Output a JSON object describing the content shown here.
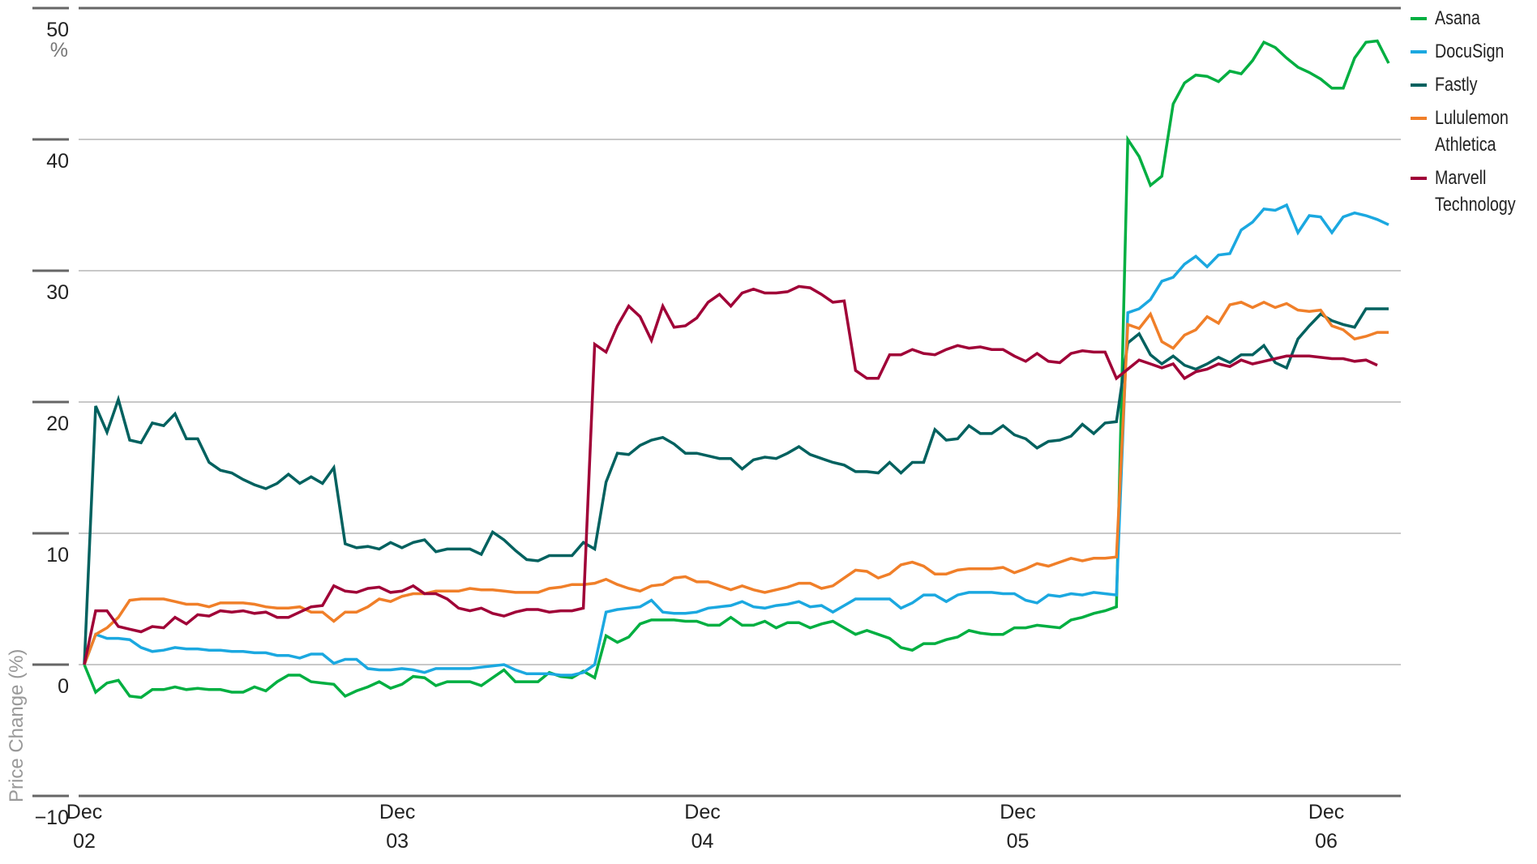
{
  "chart_data": {
    "type": "line",
    "title": "",
    "xlabel": "",
    "ylabel": "Price Change (%)",
    "y_unit": "%",
    "ylim": [
      -10,
      50
    ],
    "yticks": [
      50,
      40,
      30,
      20,
      10,
      0,
      -10
    ],
    "ytick_labels": [
      "50",
      "40",
      "30",
      "20",
      "10",
      "0",
      "−10"
    ],
    "xticks": [
      {
        "line1": "Dec",
        "line2": "02",
        "index": 0
      },
      {
        "line1": "Dec",
        "line2": "03",
        "index": 27.6
      },
      {
        "line1": "Dec",
        "line2": "04",
        "index": 54.5
      },
      {
        "line1": "Dec",
        "line2": "05",
        "index": 82.3
      },
      {
        "line1": "Dec",
        "line2": "06",
        "index": 109.5
      }
    ],
    "grid": true,
    "legend_position": "right",
    "series": [
      {
        "name": "Asana",
        "color": "#00AF41",
        "values": [
          0,
          -2.1,
          -1.4,
          -1.2,
          -2.4,
          -2.5,
          -1.9,
          -1.9,
          -1.7,
          -1.9,
          -1.8,
          -1.9,
          -1.9,
          -2.1,
          -2.1,
          -1.7,
          -2.0,
          -1.3,
          -0.8,
          -0.8,
          -1.3,
          -1.4,
          -1.5,
          -2.4,
          -2.0,
          -1.7,
          -1.3,
          -1.8,
          -1.5,
          -0.9,
          -1.0,
          -1.6,
          -1.3,
          -1.3,
          -1.3,
          -1.6,
          -1.0,
          -0.4,
          -1.3,
          -1.3,
          -1.3,
          -0.6,
          -0.9,
          -1.0,
          -0.5,
          -1.0,
          2.2,
          1.7,
          2.1,
          3.1,
          3.4,
          3.4,
          3.4,
          3.3,
          3.3,
          3.0,
          3.0,
          3.6,
          3.0,
          3.0,
          3.3,
          2.8,
          3.2,
          3.2,
          2.8,
          3.1,
          3.3,
          2.8,
          2.3,
          2.6,
          2.3,
          2.0,
          1.3,
          1.1,
          1.6,
          1.6,
          1.9,
          2.1,
          2.6,
          2.4,
          2.3,
          2.3,
          2.8,
          2.8,
          3.0,
          2.9,
          2.8,
          3.4,
          3.6,
          3.9,
          4.1,
          4.4,
          40.0,
          38.7,
          36.5,
          37.2,
          42.7,
          44.3,
          44.9,
          44.8,
          44.4,
          45.2,
          45.0,
          46.0,
          47.4,
          47.0,
          46.2,
          45.5,
          45.1,
          44.6,
          43.9,
          43.9,
          46.2,
          47.4,
          47.5,
          45.8
        ]
      },
      {
        "name": "DocuSign",
        "color": "#1BA8E0",
        "values": [
          0,
          2.3,
          2.0,
          2.0,
          1.9,
          1.3,
          1.0,
          1.1,
          1.3,
          1.2,
          1.2,
          1.1,
          1.1,
          1.0,
          1.0,
          0.9,
          0.9,
          0.7,
          0.7,
          0.5,
          0.8,
          0.8,
          0.1,
          0.4,
          0.4,
          -0.3,
          -0.4,
          -0.4,
          -0.3,
          -0.4,
          -0.6,
          -0.3,
          -0.3,
          -0.3,
          -0.3,
          -0.2,
          -0.1,
          0.0,
          -0.4,
          -0.7,
          -0.7,
          -0.7,
          -0.8,
          -0.8,
          -0.6,
          0.0,
          4.0,
          4.2,
          4.3,
          4.4,
          4.9,
          4.0,
          3.9,
          3.9,
          4.0,
          4.3,
          4.4,
          4.5,
          4.8,
          4.4,
          4.3,
          4.5,
          4.6,
          4.8,
          4.4,
          4.5,
          4.0,
          4.5,
          5.0,
          5.0,
          5.0,
          5.0,
          4.3,
          4.7,
          5.3,
          5.3,
          4.8,
          5.3,
          5.5,
          5.5,
          5.5,
          5.4,
          5.4,
          4.9,
          4.7,
          5.3,
          5.2,
          5.4,
          5.3,
          5.5,
          5.4,
          5.3,
          26.8,
          27.1,
          27.8,
          29.2,
          29.5,
          30.5,
          31.1,
          30.3,
          31.2,
          31.3,
          33.1,
          33.7,
          34.7,
          34.6,
          35.0,
          32.9,
          34.2,
          34.1,
          32.9,
          34.1,
          34.4,
          34.2,
          33.9,
          33.5
        ]
      },
      {
        "name": "Fastly",
        "color": "#00615F",
        "values": [
          0,
          19.7,
          17.7,
          20.2,
          17.1,
          16.9,
          18.4,
          18.2,
          19.1,
          17.2,
          17.2,
          15.4,
          14.8,
          14.6,
          14.1,
          13.7,
          13.4,
          13.8,
          14.5,
          13.8,
          14.3,
          13.8,
          15.0,
          9.2,
          8.9,
          9.0,
          8.8,
          9.3,
          8.9,
          9.3,
          9.5,
          8.6,
          8.8,
          8.8,
          8.8,
          8.4,
          10.1,
          9.5,
          8.7,
          8.0,
          7.9,
          8.3,
          8.3,
          8.3,
          9.3,
          8.8,
          13.9,
          16.1,
          16.0,
          16.7,
          17.1,
          17.3,
          16.8,
          16.1,
          16.1,
          15.9,
          15.7,
          15.7,
          14.9,
          15.6,
          15.8,
          15.7,
          16.1,
          16.6,
          16.0,
          15.7,
          15.4,
          15.2,
          14.7,
          14.7,
          14.6,
          15.4,
          14.6,
          15.4,
          15.4,
          17.9,
          17.1,
          17.2,
          18.2,
          17.6,
          17.6,
          18.2,
          17.5,
          17.2,
          16.5,
          17.0,
          17.1,
          17.4,
          18.3,
          17.6,
          18.4,
          18.5,
          24.5,
          25.2,
          23.6,
          22.9,
          23.5,
          22.8,
          22.5,
          22.9,
          23.4,
          23.0,
          23.6,
          23.6,
          24.3,
          23.0,
          22.6,
          24.8,
          25.8,
          26.7,
          26.2,
          25.9,
          25.7,
          27.1,
          27.1,
          27.1
        ]
      },
      {
        "name": "Lululemon Athletica",
        "color": "#F07F29",
        "values": [
          0,
          2.3,
          2.8,
          3.6,
          4.9,
          5.0,
          5.0,
          5.0,
          4.8,
          4.6,
          4.6,
          4.4,
          4.7,
          4.7,
          4.7,
          4.6,
          4.4,
          4.3,
          4.3,
          4.4,
          4.0,
          4.0,
          3.3,
          4.0,
          4.0,
          4.4,
          5.0,
          4.8,
          5.2,
          5.4,
          5.4,
          5.6,
          5.6,
          5.6,
          5.8,
          5.7,
          5.7,
          5.6,
          5.5,
          5.5,
          5.5,
          5.8,
          5.9,
          6.1,
          6.1,
          6.2,
          6.5,
          6.1,
          5.8,
          5.6,
          6.0,
          6.1,
          6.6,
          6.7,
          6.3,
          6.3,
          6.0,
          5.7,
          6.0,
          5.7,
          5.5,
          5.7,
          5.9,
          6.2,
          6.2,
          5.8,
          6.0,
          6.6,
          7.2,
          7.1,
          6.6,
          6.9,
          7.6,
          7.8,
          7.5,
          6.9,
          6.9,
          7.2,
          7.3,
          7.3,
          7.3,
          7.4,
          7.0,
          7.3,
          7.7,
          7.5,
          7.8,
          8.1,
          7.9,
          8.1,
          8.1,
          8.2,
          25.9,
          25.6,
          26.7,
          24.6,
          24.1,
          25.1,
          25.5,
          26.5,
          26.0,
          27.4,
          27.6,
          27.2,
          27.6,
          27.2,
          27.5,
          27.0,
          26.9,
          27.0,
          25.8,
          25.5,
          24.8,
          25.0,
          25.3,
          25.3
        ]
      },
      {
        "name": "Marvell Technology",
        "color": "#A00037",
        "values": [
          0,
          4.1,
          4.1,
          2.9,
          2.7,
          2.5,
          2.9,
          2.8,
          3.6,
          3.1,
          3.8,
          3.7,
          4.1,
          4.0,
          4.1,
          3.9,
          4.0,
          3.6,
          3.6,
          4.0,
          4.4,
          4.5,
          6.0,
          5.6,
          5.5,
          5.8,
          5.9,
          5.5,
          5.6,
          6.0,
          5.4,
          5.4,
          5.0,
          4.3,
          4.1,
          4.3,
          3.9,
          3.7,
          4.0,
          4.2,
          4.2,
          4.0,
          4.1,
          4.1,
          4.3,
          24.4,
          23.8,
          25.8,
          27.3,
          26.5,
          24.7,
          27.3,
          25.7,
          25.8,
          26.4,
          27.6,
          28.2,
          27.3,
          28.3,
          28.6,
          28.3,
          28.3,
          28.4,
          28.8,
          28.7,
          28.2,
          27.6,
          27.7,
          22.4,
          21.8,
          21.8,
          23.6,
          23.6,
          24.0,
          23.7,
          23.6,
          24.0,
          24.3,
          24.1,
          24.2,
          24.0,
          24.0,
          23.5,
          23.1,
          23.7,
          23.1,
          23.0,
          23.7,
          23.9,
          23.8,
          23.8,
          21.8,
          22.5,
          23.2,
          22.9,
          22.6,
          22.9,
          21.8,
          22.3,
          22.5,
          22.9,
          22.7,
          23.2,
          22.9,
          23.1,
          23.3,
          23.5,
          23.5,
          23.5,
          23.4,
          23.3,
          23.3,
          23.1,
          23.2,
          22.8
        ]
      }
    ]
  },
  "legend": {
    "items": [
      {
        "label": "Asana"
      },
      {
        "label": "DocuSign"
      },
      {
        "label": "Fastly"
      },
      {
        "label": "Lululemon\nAthletica"
      },
      {
        "label": "Marvell\nTechnology"
      }
    ]
  },
  "axis": {
    "y_unit": "%",
    "y_title": "Price Change (%)"
  }
}
